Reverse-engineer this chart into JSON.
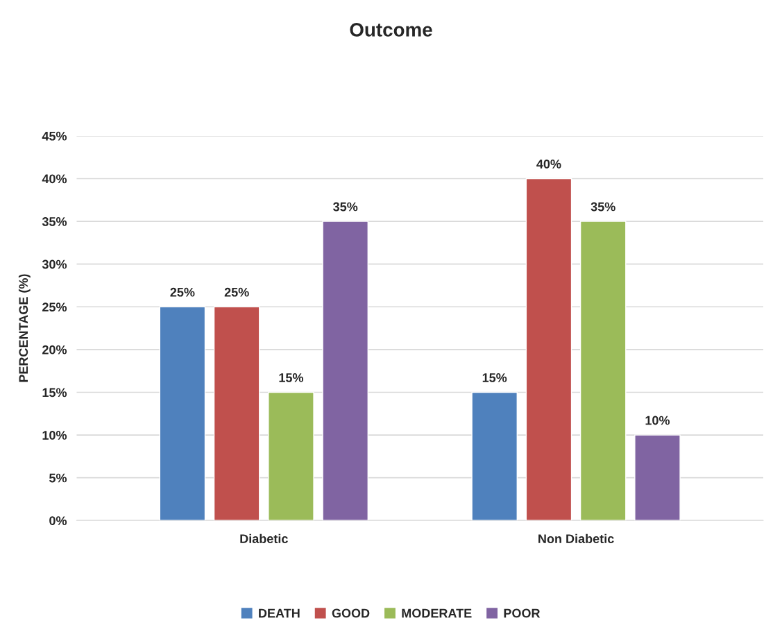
{
  "chart_data": {
    "type": "bar",
    "title": "Outcome",
    "ylabel": "PERCENTAGE (%)",
    "categories": [
      "Diabetic",
      "Non Diabetic"
    ],
    "series": [
      {
        "name": "DEATH",
        "color": "#4f81bd",
        "values": [
          25,
          15
        ],
        "value_labels": [
          "25%",
          "15%"
        ]
      },
      {
        "name": "GOOD",
        "color": "#c0504d",
        "values": [
          25,
          40
        ],
        "value_labels": [
          "25%",
          "40%"
        ]
      },
      {
        "name": "MODERATE",
        "color": "#9bbb59",
        "values": [
          15,
          35
        ],
        "value_labels": [
          "15%",
          "35%"
        ]
      },
      {
        "name": "POOR",
        "color": "#8064a2",
        "values": [
          35,
          10
        ],
        "value_labels": [
          "35%",
          "10%"
        ]
      }
    ],
    "ylim": [
      0,
      45
    ],
    "yticks": [
      {
        "value": 0,
        "label": "0%"
      },
      {
        "value": 5,
        "label": "5%"
      },
      {
        "value": 10,
        "label": "10%"
      },
      {
        "value": 15,
        "label": "15%"
      },
      {
        "value": 20,
        "label": "20%"
      },
      {
        "value": 25,
        "label": "25%"
      },
      {
        "value": 30,
        "label": "30%"
      },
      {
        "value": 35,
        "label": "35%"
      },
      {
        "value": 40,
        "label": "40%"
      },
      {
        "value": 45,
        "label": "45%"
      }
    ],
    "grid": "y",
    "legend": "bottom"
  }
}
